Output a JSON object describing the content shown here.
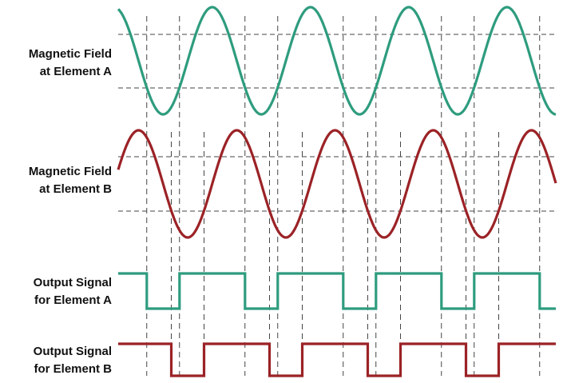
{
  "labels": {
    "field_a": [
      "Magnetic Field",
      "at Element A"
    ],
    "field_b": [
      "Magnetic Field",
      "at Element B"
    ],
    "output_a": [
      "Output Signal",
      "for Element A"
    ],
    "output_b": [
      "Output Signal",
      "for Element B"
    ]
  },
  "colors": {
    "element_a": "#2e9c7e",
    "element_b": "#9b2226",
    "guide": "#444444"
  },
  "signal": {
    "period_cycles_shown": 4.5,
    "phase_shift_b_cycles": 0.25,
    "threshold_high": 0.5,
    "threshold_low": -0.5
  }
}
